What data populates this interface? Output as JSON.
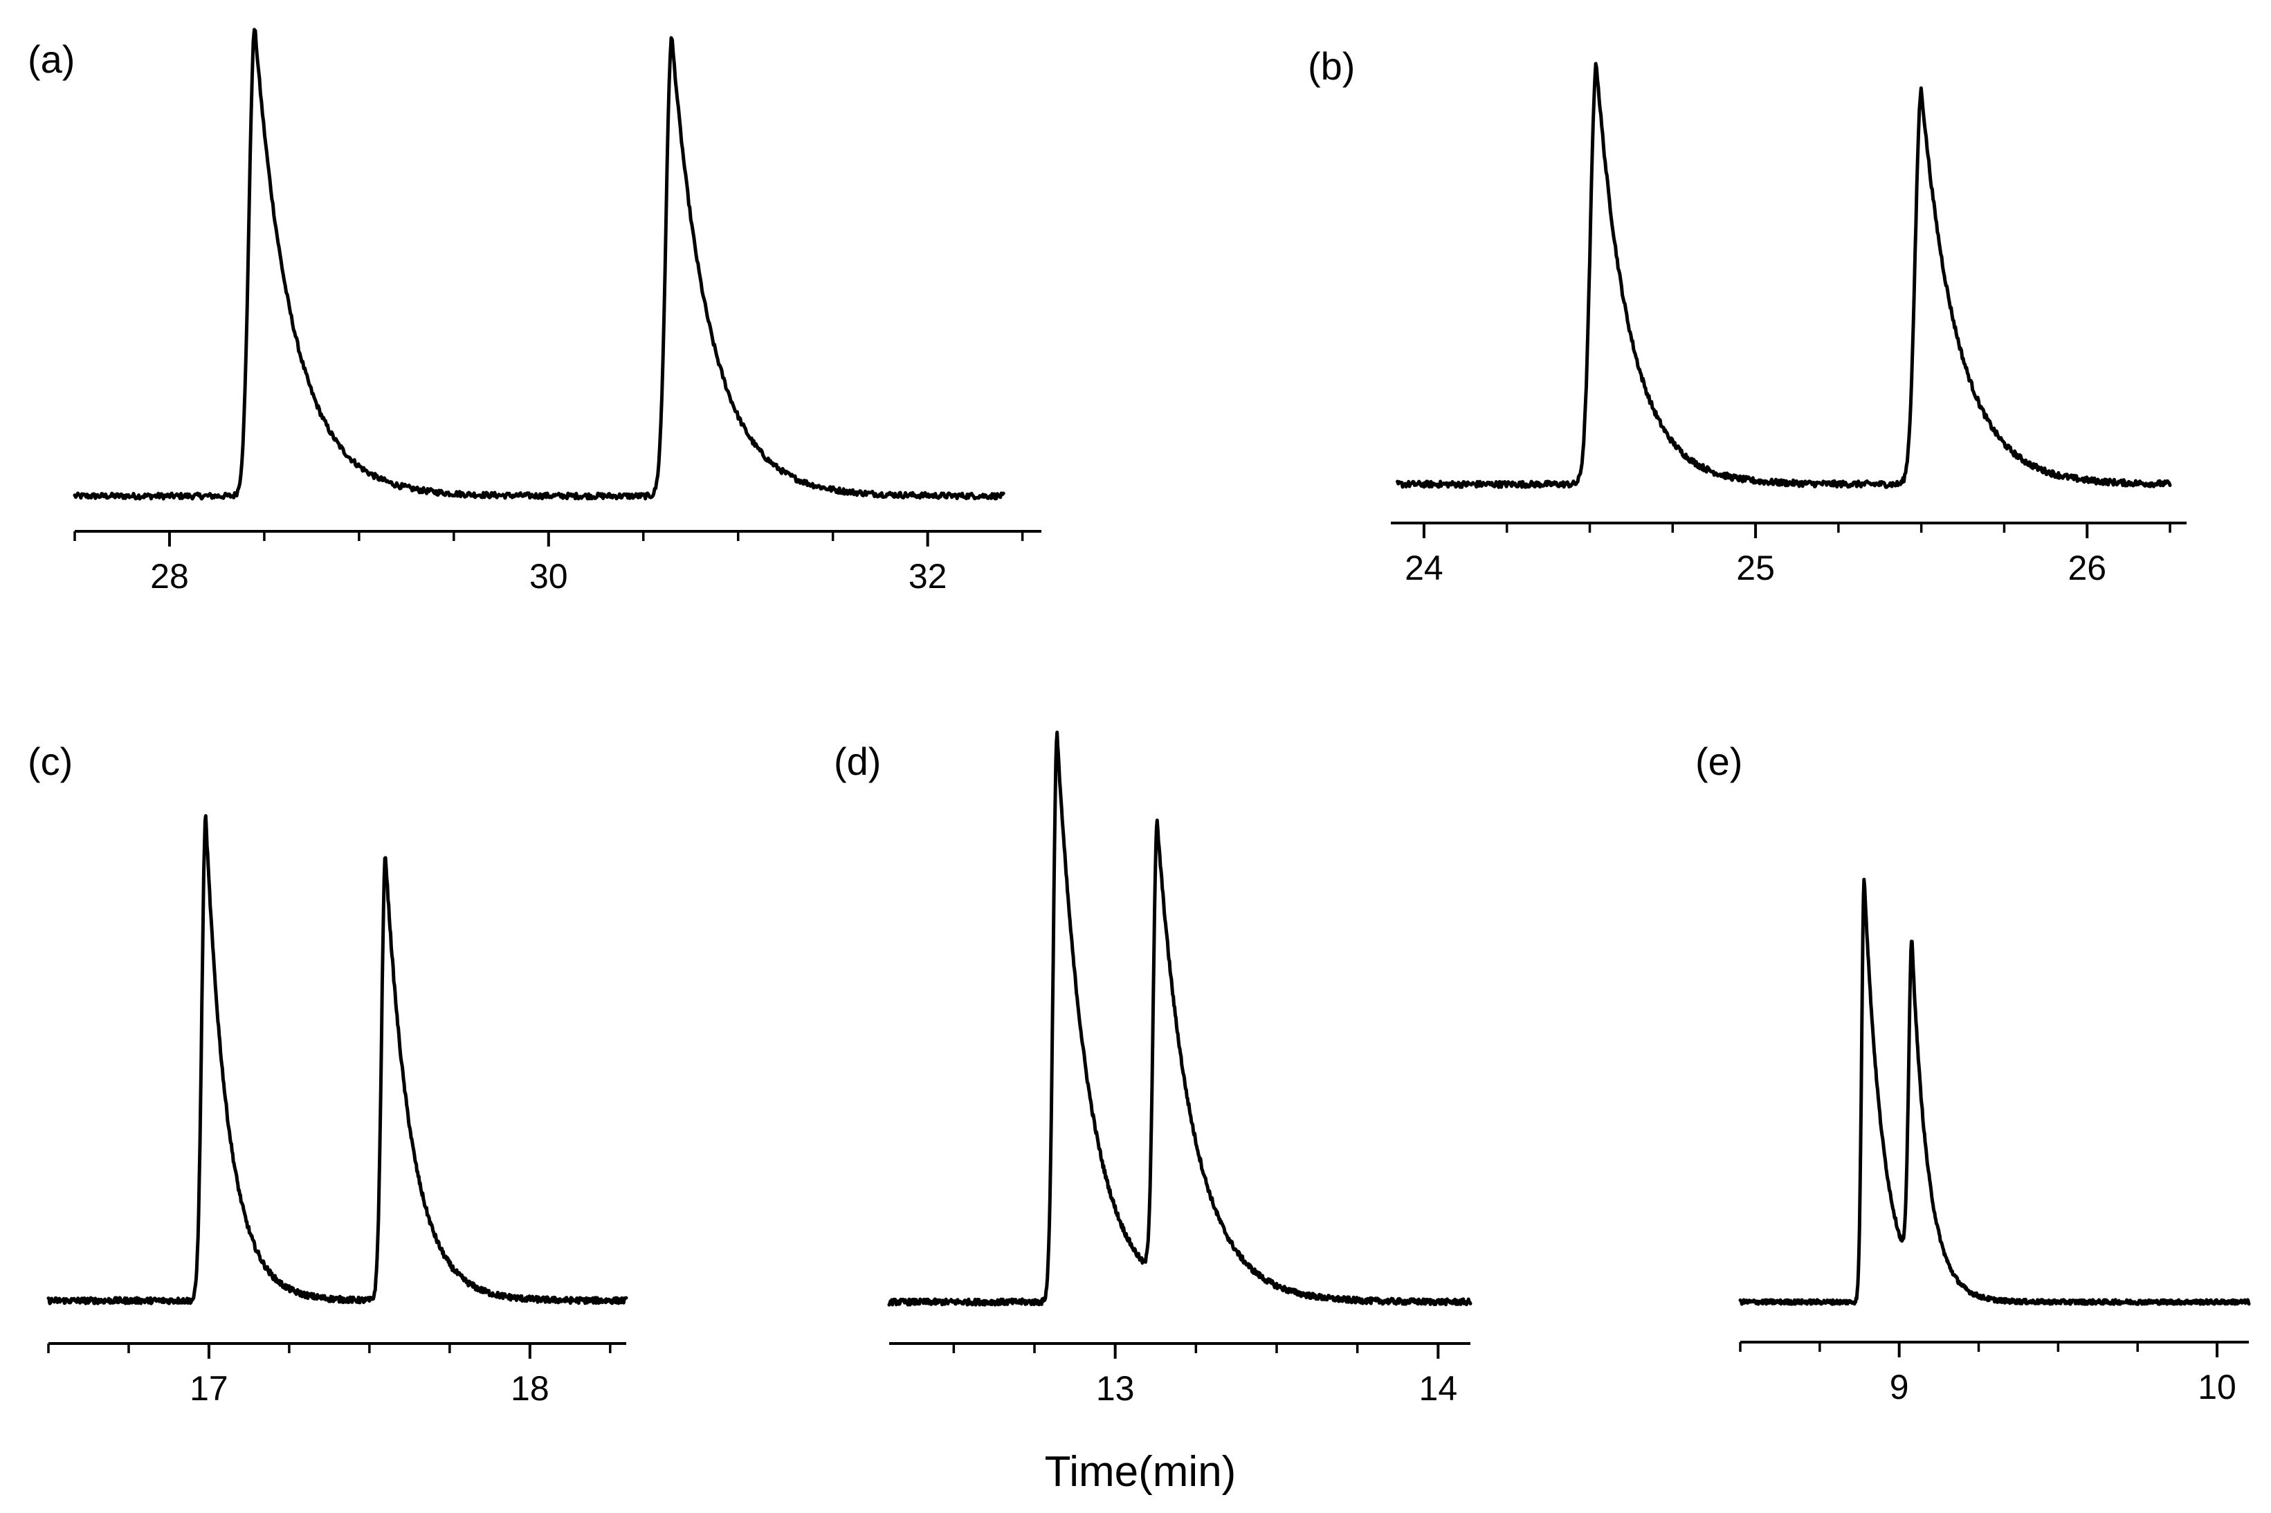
{
  "chart_data": [
    {
      "type": "line",
      "panel_label": "(a)",
      "xlabel": "",
      "xlim": [
        27.5,
        32.6
      ],
      "x_ticks": [
        28,
        30,
        32
      ],
      "x_minor_step": 0.5,
      "x_range_data": [
        27.5,
        32.4
      ],
      "peaks": [
        {
          "t": 28.45,
          "height": 1.0,
          "rise": 0.03,
          "tail": 0.2
        },
        {
          "t": 30.65,
          "height": 0.98,
          "rise": 0.03,
          "tail": 0.2
        }
      ],
      "noise": 0.012
    },
    {
      "type": "line",
      "panel_label": "(b)",
      "xlabel": "",
      "xlim": [
        23.9,
        26.3
      ],
      "x_ticks": [
        24,
        25,
        26
      ],
      "x_minor_step": 0.25,
      "x_range_data": [
        23.92,
        26.25
      ],
      "peaks": [
        {
          "t": 24.52,
          "height": 0.98,
          "rise": 0.018,
          "tail": 0.1
        },
        {
          "t": 25.5,
          "height": 0.92,
          "rise": 0.018,
          "tail": 0.11
        }
      ],
      "noise": 0.014
    },
    {
      "type": "line",
      "panel_label": "(c)",
      "xlabel": "",
      "xlim": [
        16.5,
        18.3
      ],
      "x_ticks": [
        17,
        18
      ],
      "x_minor_step": 0.25,
      "x_range_data": [
        16.5,
        18.3
      ],
      "peaks": [
        {
          "t": 16.99,
          "height": 1.0,
          "rise": 0.012,
          "tail": 0.07
        },
        {
          "t": 17.55,
          "height": 0.92,
          "rise": 0.012,
          "tail": 0.08
        }
      ],
      "noise": 0.012
    },
    {
      "type": "line",
      "panel_label": "(d)",
      "xlabel": "Time(min)",
      "xlim": [
        12.3,
        14.1
      ],
      "x_ticks": [
        13,
        14
      ],
      "x_minor_step": 0.25,
      "x_range_data": [
        12.3,
        14.1
      ],
      "peaks": [
        {
          "t": 12.82,
          "height": 1.0,
          "rise": 0.012,
          "tail": 0.1
        },
        {
          "t": 13.13,
          "height": 0.8,
          "rise": 0.012,
          "tail": 0.11
        }
      ],
      "noise": 0.01
    },
    {
      "type": "line",
      "panel_label": "(e)",
      "xlabel": "",
      "xlim": [
        8.5,
        10.1
      ],
      "x_ticks": [
        9,
        10
      ],
      "x_minor_step": 0.25,
      "x_range_data": [
        8.5,
        10.1
      ],
      "peaks": [
        {
          "t": 8.89,
          "height": 0.96,
          "rise": 0.008,
          "tail": 0.06
        },
        {
          "t": 9.04,
          "height": 0.74,
          "rise": 0.01,
          "tail": 0.05
        }
      ],
      "noise": 0.01
    }
  ]
}
